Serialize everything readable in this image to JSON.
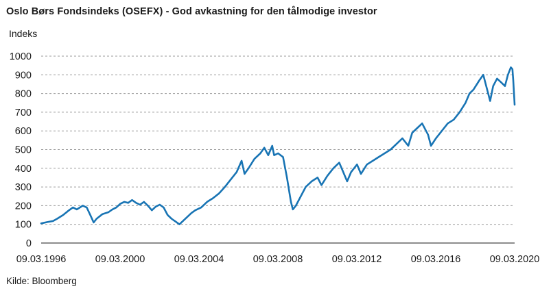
{
  "chart_data": {
    "type": "line",
    "title": "Oslo Børs Fondsindeks (OSEFX) - God avkastning for den tålmodige investor",
    "ylabel": "Indeks",
    "xlabel": "",
    "source": "Kilde: Bloomberg",
    "ylim": [
      0,
      1000
    ],
    "yticks": [
      0,
      100,
      200,
      300,
      400,
      500,
      600,
      700,
      800,
      900,
      1000
    ],
    "xlim": [
      1996.19,
      2020.19
    ],
    "xticks": [
      {
        "x": 1996.19,
        "label": "09.03.1996"
      },
      {
        "x": 2000.19,
        "label": "09.03.2000"
      },
      {
        "x": 2004.19,
        "label": "09.03.2004"
      },
      {
        "x": 2008.19,
        "label": "09.03.2008"
      },
      {
        "x": 2012.19,
        "label": "09.03.2012"
      },
      {
        "x": 2016.19,
        "label": "09.03.2016"
      },
      {
        "x": 2020.19,
        "label": "09.03.2020"
      }
    ],
    "grid": true,
    "line_color": "#1874b4",
    "series": [
      {
        "name": "",
        "points": [
          [
            1996.19,
            105
          ],
          [
            1996.5,
            112
          ],
          [
            1996.8,
            118
          ],
          [
            1997.0,
            130
          ],
          [
            1997.3,
            150
          ],
          [
            1997.6,
            175
          ],
          [
            1997.8,
            190
          ],
          [
            1998.0,
            180
          ],
          [
            1998.3,
            200
          ],
          [
            1998.5,
            190
          ],
          [
            1998.7,
            145
          ],
          [
            1998.85,
            110
          ],
          [
            1999.0,
            130
          ],
          [
            1999.3,
            155
          ],
          [
            1999.6,
            165
          ],
          [
            1999.8,
            180
          ],
          [
            2000.0,
            190
          ],
          [
            2000.2,
            210
          ],
          [
            2000.4,
            220
          ],
          [
            2000.6,
            215
          ],
          [
            2000.8,
            230
          ],
          [
            2001.0,
            215
          ],
          [
            2001.2,
            205
          ],
          [
            2001.4,
            220
          ],
          [
            2001.6,
            200
          ],
          [
            2001.8,
            175
          ],
          [
            2002.0,
            195
          ],
          [
            2002.2,
            205
          ],
          [
            2002.4,
            190
          ],
          [
            2002.6,
            150
          ],
          [
            2002.8,
            130
          ],
          [
            2003.0,
            115
          ],
          [
            2003.2,
            100
          ],
          [
            2003.4,
            120
          ],
          [
            2003.6,
            140
          ],
          [
            2003.8,
            160
          ],
          [
            2004.0,
            175
          ],
          [
            2004.3,
            190
          ],
          [
            2004.6,
            220
          ],
          [
            2004.9,
            240
          ],
          [
            2005.2,
            265
          ],
          [
            2005.5,
            300
          ],
          [
            2005.8,
            340
          ],
          [
            2006.1,
            380
          ],
          [
            2006.35,
            440
          ],
          [
            2006.5,
            370
          ],
          [
            2006.7,
            400
          ],
          [
            2007.0,
            450
          ],
          [
            2007.3,
            480
          ],
          [
            2007.5,
            510
          ],
          [
            2007.7,
            470
          ],
          [
            2007.9,
            520
          ],
          [
            2008.0,
            470
          ],
          [
            2008.2,
            480
          ],
          [
            2008.45,
            460
          ],
          [
            2008.65,
            350
          ],
          [
            2008.85,
            220
          ],
          [
            2008.95,
            180
          ],
          [
            2009.1,
            200
          ],
          [
            2009.3,
            240
          ],
          [
            2009.6,
            300
          ],
          [
            2009.9,
            330
          ],
          [
            2010.2,
            350
          ],
          [
            2010.4,
            310
          ],
          [
            2010.7,
            360
          ],
          [
            2011.0,
            400
          ],
          [
            2011.3,
            430
          ],
          [
            2011.5,
            380
          ],
          [
            2011.7,
            330
          ],
          [
            2011.9,
            380
          ],
          [
            2012.2,
            420
          ],
          [
            2012.4,
            370
          ],
          [
            2012.7,
            420
          ],
          [
            2013.0,
            440
          ],
          [
            2013.3,
            460
          ],
          [
            2013.6,
            480
          ],
          [
            2013.9,
            500
          ],
          [
            2014.2,
            530
          ],
          [
            2014.5,
            560
          ],
          [
            2014.8,
            520
          ],
          [
            2015.0,
            590
          ],
          [
            2015.2,
            610
          ],
          [
            2015.5,
            640
          ],
          [
            2015.8,
            580
          ],
          [
            2015.95,
            520
          ],
          [
            2016.2,
            560
          ],
          [
            2016.5,
            600
          ],
          [
            2016.8,
            640
          ],
          [
            2017.1,
            660
          ],
          [
            2017.4,
            700
          ],
          [
            2017.7,
            750
          ],
          [
            2017.9,
            800
          ],
          [
            2018.1,
            820
          ],
          [
            2018.4,
            870
          ],
          [
            2018.6,
            900
          ],
          [
            2018.8,
            820
          ],
          [
            2018.95,
            760
          ],
          [
            2019.1,
            840
          ],
          [
            2019.3,
            880
          ],
          [
            2019.5,
            860
          ],
          [
            2019.7,
            840
          ],
          [
            2019.85,
            900
          ],
          [
            2020.0,
            940
          ],
          [
            2020.08,
            930
          ],
          [
            2020.12,
            870
          ],
          [
            2020.19,
            740
          ]
        ]
      }
    ]
  }
}
